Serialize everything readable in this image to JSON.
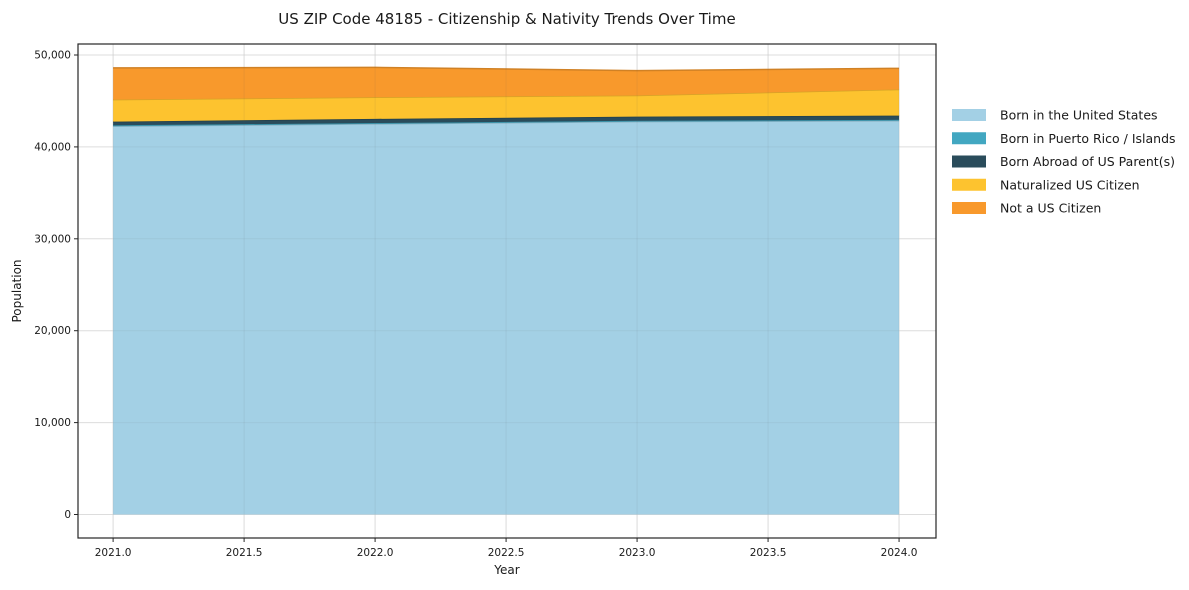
{
  "title": "US ZIP Code 48185 - Citizenship & Nativity Trends Over Time",
  "axes": {
    "xlabel": "Year",
    "ylabel": "Population",
    "x_tick_labels": [
      "2021.0",
      "2021.5",
      "2022.0",
      "2022.5",
      "2023.0",
      "2023.5",
      "2024.0"
    ],
    "y_tick_labels": [
      "0",
      "10,000",
      "20,000",
      "30,000",
      "40,000",
      "50,000"
    ]
  },
  "legend": {
    "position": "right-outside",
    "entries": [
      "Born in the United States",
      "Born in Puerto Rico / Islands",
      "Born Abroad of US Parent(s)",
      "Naturalized US Citizen",
      "Not a US Citizen"
    ]
  },
  "chart_data": {
    "type": "area",
    "stacked": true,
    "title": "US ZIP Code 48185 - Citizenship & Nativity Trends Over Time",
    "xlabel": "Year",
    "ylabel": "Population",
    "x": [
      2021,
      2022,
      2023,
      2024
    ],
    "series": [
      {
        "name": "Born in the United States",
        "color": "#A3D0E5",
        "values": [
          42250,
          42500,
          42750,
          42850
        ]
      },
      {
        "name": "Born in Puerto Rico / Islands",
        "color": "#42A7C1",
        "values": [
          100,
          100,
          100,
          100
        ]
      },
      {
        "name": "Born Abroad of US Parent(s)",
        "color": "#2A4C5B",
        "values": [
          400,
          450,
          450,
          450
        ]
      },
      {
        "name": "Naturalized US Citizen",
        "color": "#FDC32F",
        "values": [
          2400,
          2350,
          2300,
          2850
        ]
      },
      {
        "name": "Not a US Citizen",
        "color": "#F8992C",
        "values": [
          3450,
          3250,
          2700,
          2300
        ]
      }
    ],
    "totals": [
      48600,
      48650,
      48300,
      48550
    ],
    "x_tick_values": [
      2021.0,
      2021.5,
      2022.0,
      2022.5,
      2023.0,
      2023.5,
      2024.0
    ],
    "y_tick_values": [
      0,
      10000,
      20000,
      30000,
      40000,
      50000
    ],
    "xlim": [
      2020.866,
      2024.141
    ],
    "ylim": [
      -2557,
      51197
    ],
    "grid": true,
    "legend_position": "right-outside",
    "background_color": "#ffffff",
    "gridline_color": "#e8e8e8",
    "spine_color": "#262626"
  }
}
